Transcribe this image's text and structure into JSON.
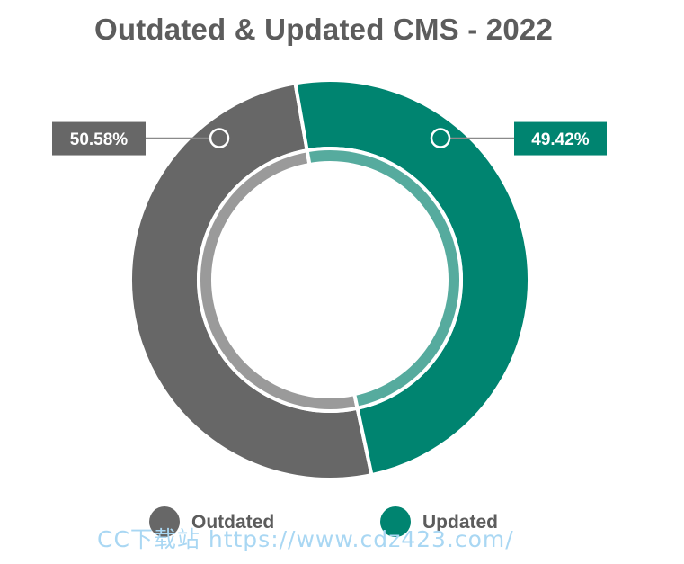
{
  "chart_data": {
    "type": "pie",
    "variant": "donut",
    "title": "Outdated & Updated CMS - 2022",
    "slices": [
      {
        "name": "Outdated",
        "value": 50.58,
        "label": "50.58%",
        "color": "#676767",
        "inner_color": "#9a9a9a"
      },
      {
        "name": "Updated",
        "value": 49.42,
        "label": "49.42%",
        "color": "#008470",
        "inner_color": "#56ab9e"
      }
    ],
    "legend_position": "bottom"
  },
  "watermark": "CC下载站 https://www.cdz423.com/"
}
